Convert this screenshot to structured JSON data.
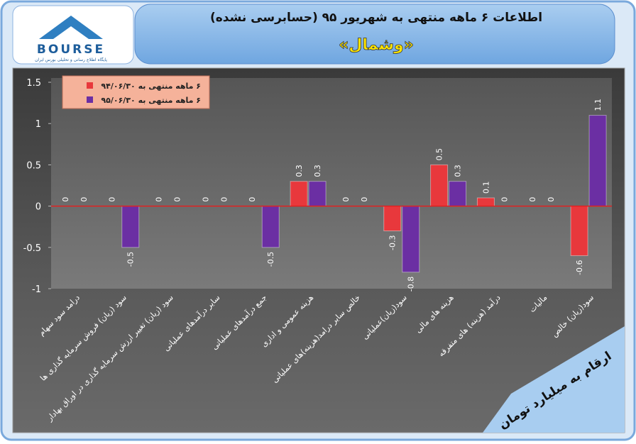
{
  "logo": {
    "text": "BOURSE",
    "tagline": "پایگاه اطلاع رسانی و تحلیلی بورس ایران"
  },
  "chart_data": {
    "type": "bar",
    "title": "اطلاعات ۶ ماهه منتهی به شهریور ۹۵ (حسابرسی نشده)",
    "subtitle": "«وشمال»",
    "note": "ارقام به میلیارد تومان",
    "categories": [
      "درامد سود سهام",
      "سود (زیان) فروش سرمایه گذاری ها",
      "سود (زیان) تغییر ارزش سرمایه گذاری در اوراق بهادار",
      "سایر درآمدهای عملیاتی",
      "جمع درآمدهای عملیاتی",
      "هزینه عمومی و اداری",
      "خالص سایر درامد(هزینه)های عملیاتی",
      "سود(زیان)عملیاتی",
      "هزینه های مالی",
      "درآمد (هزینه) های متفرقه",
      "مالیات",
      "سود(زیان) خالص"
    ],
    "series": [
      {
        "name": "۶ ماهه منتهی به ۹۴/۰۶/۳۰",
        "color": "#e8383c",
        "values": [
          0,
          0,
          0,
          0,
          0,
          0.3,
          0,
          -0.3,
          0.5,
          0.1,
          0,
          -0.6
        ]
      },
      {
        "name": "۶ ماهه منتهی به ۹۵/۰۶/۳۰",
        "color": "#6b2fa3",
        "values": [
          0,
          -0.5,
          0,
          0,
          -0.5,
          0.3,
          0,
          -0.8,
          0.3,
          0,
          0,
          1.1
        ]
      }
    ],
    "ylim": [
      -1,
      1.5
    ],
    "yticks": [
      1.5,
      1,
      0.5,
      0,
      -0.5,
      -1
    ],
    "legend": "top-left",
    "zero_line_color": "#e02020"
  }
}
